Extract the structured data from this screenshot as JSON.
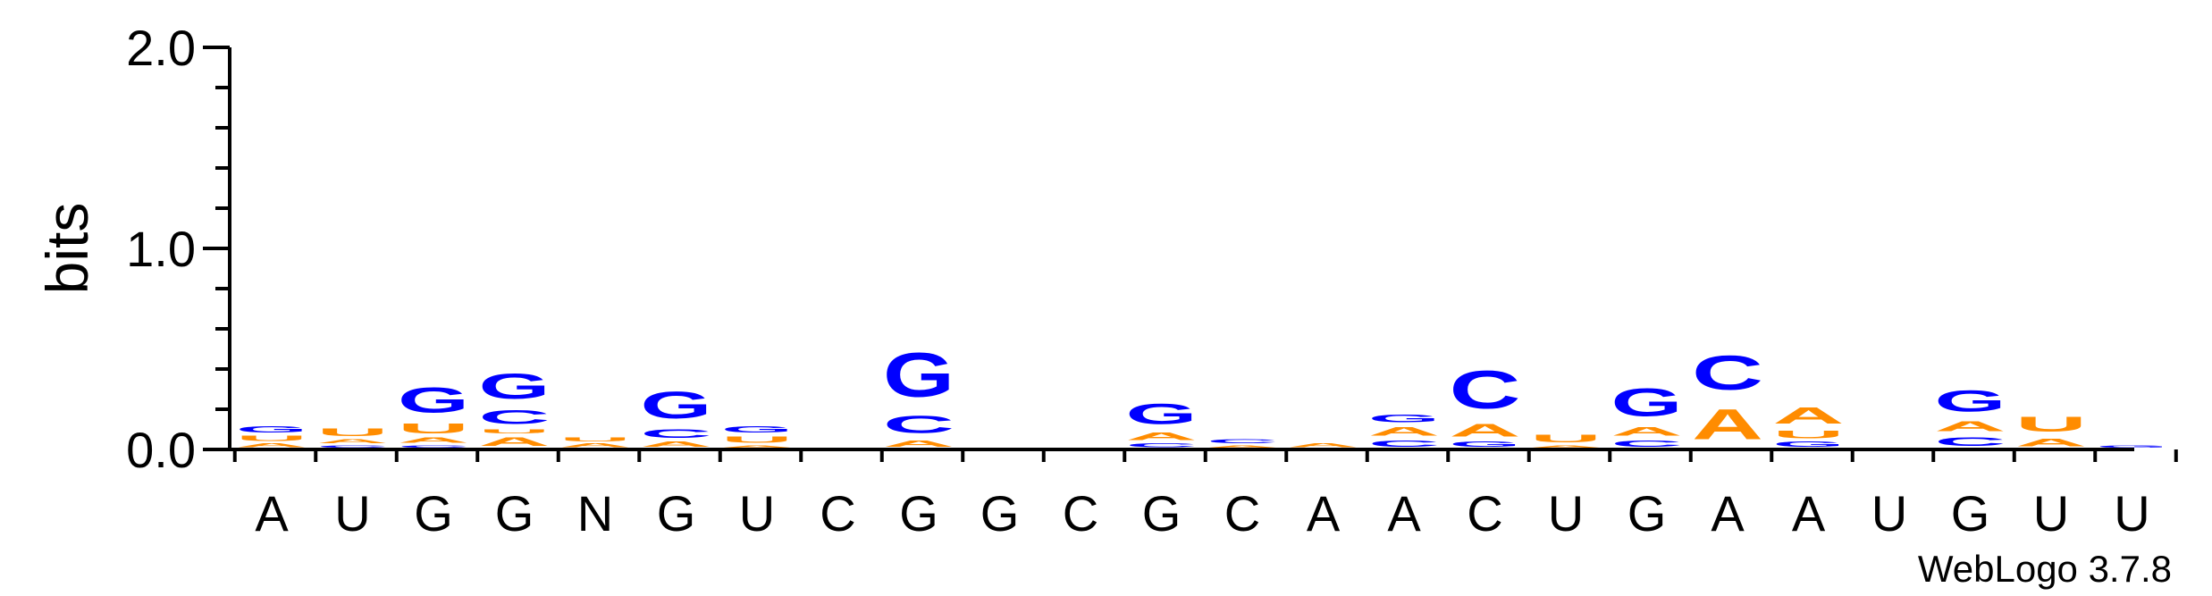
{
  "chart_data": {
    "type": "sequence-logo",
    "ylabel": "bits",
    "ylim": [
      0,
      2.0
    ],
    "y_ticks": [
      "0.0",
      "1.0",
      "2.0"
    ],
    "colors": {
      "A": "#ff8c00",
      "U": "#ff8c00",
      "G": "#0000ff",
      "C": "#0000ff"
    },
    "credit": "WebLogo 3.7.8",
    "positions": [
      {
        "label": "A",
        "stack": [
          {
            "l": "A",
            "h": 0.03
          },
          {
            "l": "U",
            "h": 0.04
          },
          {
            "l": "G",
            "h": 0.05
          }
        ]
      },
      {
        "label": "U",
        "stack": [
          {
            "l": "C",
            "h": 0.02
          },
          {
            "l": "A",
            "h": 0.03
          },
          {
            "l": "U",
            "h": 0.06
          }
        ]
      },
      {
        "label": "G",
        "stack": [
          {
            "l": "C",
            "h": 0.02
          },
          {
            "l": "A",
            "h": 0.04
          },
          {
            "l": "U",
            "h": 0.08
          },
          {
            "l": "G",
            "h": 0.2
          }
        ]
      },
      {
        "label": "G",
        "stack": [
          {
            "l": "A",
            "h": 0.07
          },
          {
            "l": "U",
            "h": 0.03
          },
          {
            "l": "C",
            "h": 0.11
          },
          {
            "l": "G",
            "h": 0.2
          }
        ]
      },
      {
        "label": "N",
        "stack": [
          {
            "l": "A",
            "h": 0.03
          },
          {
            "l": "U",
            "h": 0.03
          }
        ]
      },
      {
        "label": "G",
        "stack": [
          {
            "l": "A",
            "h": 0.04
          },
          {
            "l": "C",
            "h": 0.07
          },
          {
            "l": "G",
            "h": 0.21
          }
        ]
      },
      {
        "label": "U",
        "stack": [
          {
            "l": "A",
            "h": 0.02
          },
          {
            "l": "U",
            "h": 0.05
          },
          {
            "l": "G",
            "h": 0.05
          }
        ]
      },
      {
        "label": "C",
        "stack": []
      },
      {
        "label": "G",
        "stack": [
          {
            "l": "A",
            "h": 0.05
          },
          {
            "l": "C",
            "h": 0.14
          },
          {
            "l": "G",
            "h": 0.35
          }
        ]
      },
      {
        "label": "G",
        "stack": []
      },
      {
        "label": "C",
        "stack": []
      },
      {
        "label": "G",
        "stack": [
          {
            "l": "C",
            "h": 0.03
          },
          {
            "l": "A",
            "h": 0.06
          },
          {
            "l": "G",
            "h": 0.16
          }
        ]
      },
      {
        "label": "C",
        "stack": [
          {
            "l": "A",
            "h": 0.02
          },
          {
            "l": "C",
            "h": 0.03
          }
        ]
      },
      {
        "label": "A",
        "stack": [
          {
            "l": "A",
            "h": 0.03
          }
        ]
      },
      {
        "label": "A",
        "stack": [
          {
            "l": "C",
            "h": 0.05
          },
          {
            "l": "A",
            "h": 0.07
          },
          {
            "l": "G",
            "h": 0.06
          }
        ]
      },
      {
        "label": "C",
        "stack": [
          {
            "l": "G",
            "h": 0.04
          },
          {
            "l": "A",
            "h": 0.1
          },
          {
            "l": "C",
            "h": 0.3
          }
        ]
      },
      {
        "label": "U",
        "stack": [
          {
            "l": "A",
            "h": 0.02
          },
          {
            "l": "U",
            "h": 0.06
          }
        ]
      },
      {
        "label": "G",
        "stack": [
          {
            "l": "C",
            "h": 0.05
          },
          {
            "l": "A",
            "h": 0.07
          },
          {
            "l": "G",
            "h": 0.22
          }
        ]
      },
      {
        "label": "A",
        "stack": [
          {
            "l": "A",
            "h": 0.24
          },
          {
            "l": "C",
            "h": 0.27
          }
        ]
      },
      {
        "label": "A",
        "stack": [
          {
            "l": "G",
            "h": 0.04
          },
          {
            "l": "U",
            "h": 0.06
          },
          {
            "l": "A",
            "h": 0.13
          }
        ]
      },
      {
        "label": "U",
        "stack": []
      },
      {
        "label": "G",
        "stack": [
          {
            "l": "C",
            "h": 0.07
          },
          {
            "l": "A",
            "h": 0.08
          },
          {
            "l": "G",
            "h": 0.17
          }
        ]
      },
      {
        "label": "U",
        "stack": [
          {
            "l": "A",
            "h": 0.06
          },
          {
            "l": "U",
            "h": 0.12
          }
        ]
      },
      {
        "label": "U",
        "stack": [
          {
            "l": "G",
            "h": 0.02
          }
        ]
      }
    ]
  }
}
